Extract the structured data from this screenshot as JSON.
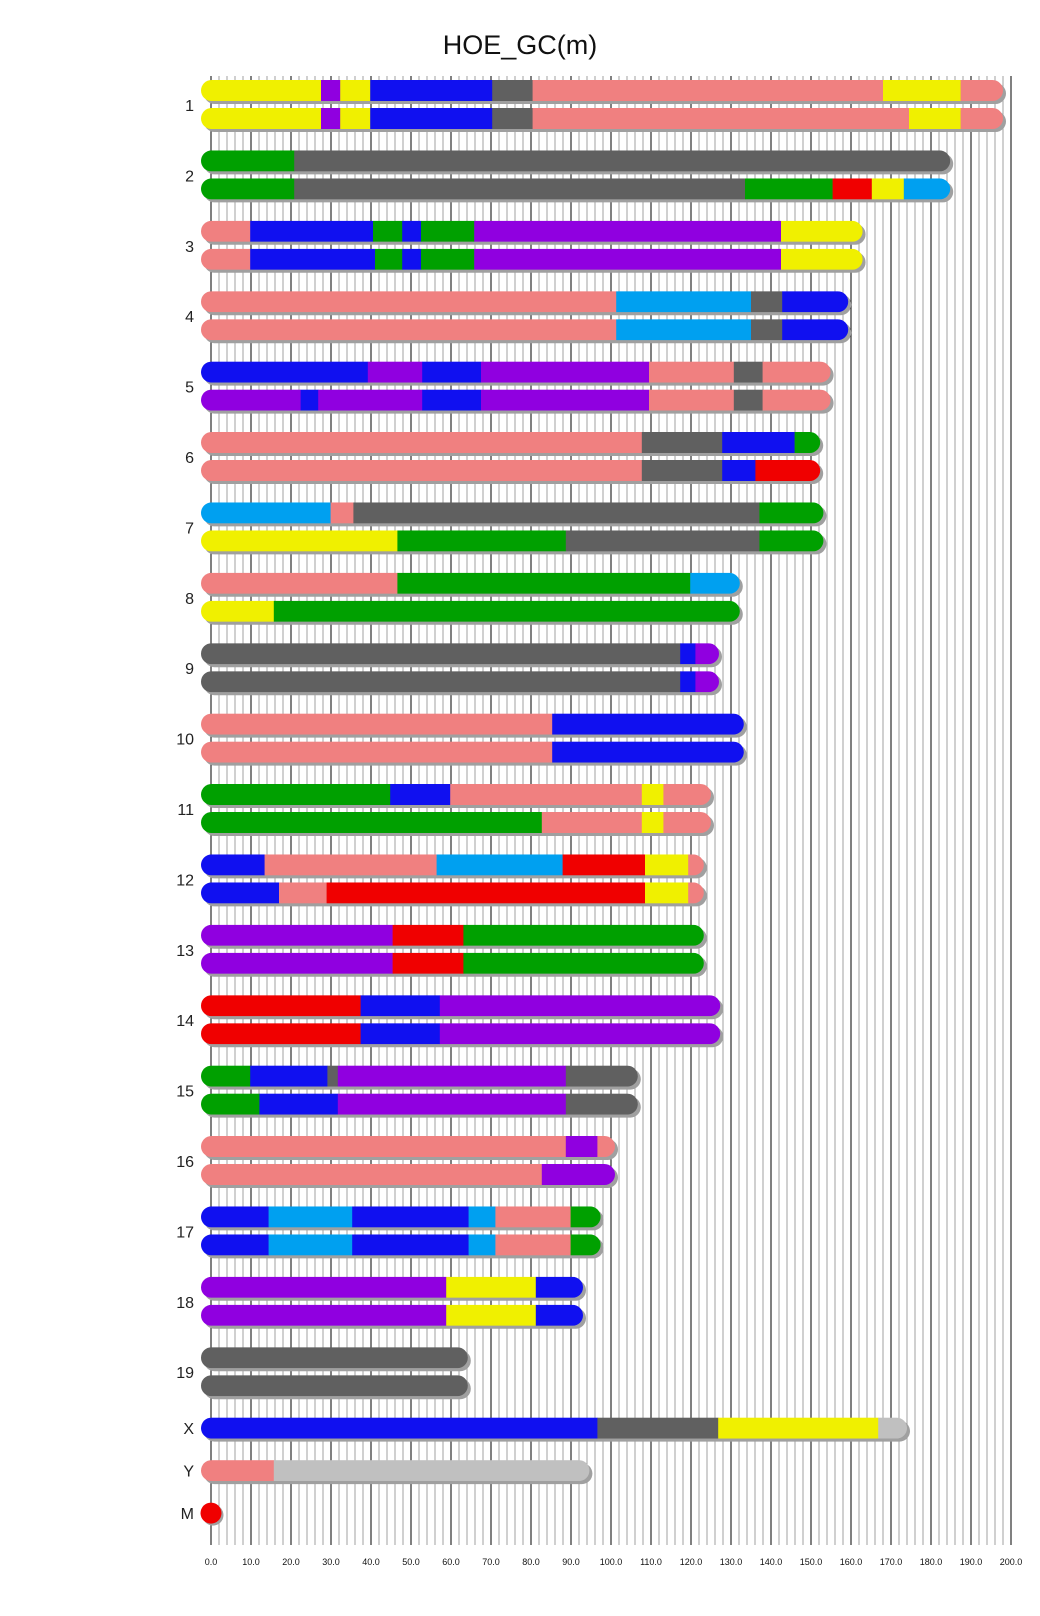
{
  "chart_data": {
    "type": "chromosome-painting",
    "title": "HOE_GC(m)",
    "xlabel": "",
    "xlim": [
      0,
      200
    ],
    "xticks": [
      "0.0",
      "10.0",
      "20.0",
      "30.0",
      "40.0",
      "50.0",
      "60.0",
      "70.0",
      "80.0",
      "90.0",
      "100.0",
      "110.0",
      "120.0",
      "130.0",
      "140.0",
      "150.0",
      "160.0",
      "170.0",
      "180.0",
      "190.0",
      "200.0"
    ],
    "grid": true,
    "colors": {
      "yellow": "#f0f000",
      "purple": "#9000e0",
      "blue": "#1010f0",
      "gray": "#606060",
      "pink": "#f08080",
      "green": "#00a000",
      "red": "#f00000",
      "lightblue": "#00a0f0",
      "lightgray": "#c0c0c0"
    },
    "chromosomes": [
      {
        "name": "1",
        "rows": [
          [
            [
              0,
              27.5,
              "yellow"
            ],
            [
              27.5,
              32.3,
              "purple"
            ],
            [
              32.3,
              39.8,
              "yellow"
            ],
            [
              39.8,
              70.3,
              "blue"
            ],
            [
              70.3,
              80.4,
              "gray"
            ],
            [
              80.4,
              168,
              "pink"
            ],
            [
              168,
              187.4,
              "yellow"
            ],
            [
              187.4,
              198,
              "pink"
            ]
          ],
          [
            [
              0,
              27.5,
              "yellow"
            ],
            [
              27.5,
              32.3,
              "purple"
            ],
            [
              32.3,
              39.8,
              "yellow"
            ],
            [
              39.8,
              70.3,
              "blue"
            ],
            [
              70.3,
              80.4,
              "gray"
            ],
            [
              80.4,
              174.5,
              "pink"
            ],
            [
              174.5,
              187.4,
              "yellow"
            ],
            [
              187.4,
              198,
              "pink"
            ]
          ]
        ]
      },
      {
        "name": "2",
        "rows": [
          [
            [
              0,
              20.8,
              "green"
            ],
            [
              20.8,
              184.8,
              "gray"
            ]
          ],
          [
            [
              0,
              20.8,
              "green"
            ],
            [
              20.8,
              133.5,
              "gray"
            ],
            [
              133.5,
              155.4,
              "green"
            ],
            [
              155.4,
              165.2,
              "red"
            ],
            [
              165.2,
              173.2,
              "yellow"
            ],
            [
              173.2,
              184.8,
              "lightblue"
            ]
          ]
        ]
      },
      {
        "name": "3",
        "rows": [
          [
            [
              0,
              9.8,
              "pink"
            ],
            [
              9.8,
              40.5,
              "blue"
            ],
            [
              40.5,
              47.8,
              "green"
            ],
            [
              47.8,
              52.5,
              "blue"
            ],
            [
              52.5,
              65.8,
              "green"
            ],
            [
              65.8,
              142.5,
              "purple"
            ],
            [
              142.5,
              162.9,
              "yellow"
            ]
          ],
          [
            [
              0,
              9.8,
              "pink"
            ],
            [
              9.8,
              41,
              "blue"
            ],
            [
              41,
              47.8,
              "green"
            ],
            [
              47.8,
              52.5,
              "blue"
            ],
            [
              52.5,
              65.8,
              "green"
            ],
            [
              65.8,
              142.5,
              "purple"
            ],
            [
              142.5,
              162.9,
              "yellow"
            ]
          ]
        ]
      },
      {
        "name": "4",
        "rows": [
          [
            [
              0,
              101.3,
              "pink"
            ],
            [
              101.3,
              135,
              "lightblue"
            ],
            [
              135,
              142.8,
              "gray"
            ],
            [
              142.8,
              159.3,
              "blue"
            ]
          ],
          [
            [
              0,
              101.3,
              "pink"
            ],
            [
              101.3,
              135,
              "lightblue"
            ],
            [
              135,
              142.8,
              "gray"
            ],
            [
              142.8,
              159.3,
              "blue"
            ]
          ]
        ]
      },
      {
        "name": "5",
        "rows": [
          [
            [
              0,
              39.2,
              "blue"
            ],
            [
              39.2,
              52.8,
              "purple"
            ],
            [
              52.8,
              67.5,
              "blue"
            ],
            [
              67.5,
              109.5,
              "purple"
            ],
            [
              109.5,
              130.7,
              "pink"
            ],
            [
              130.7,
              137.9,
              "gray"
            ],
            [
              137.9,
              154.9,
              "pink"
            ]
          ],
          [
            [
              0,
              22.4,
              "purple"
            ],
            [
              22.4,
              26.8,
              "blue"
            ],
            [
              26.8,
              52.8,
              "purple"
            ],
            [
              52.8,
              67.5,
              "blue"
            ],
            [
              67.5,
              109.5,
              "purple"
            ],
            [
              109.5,
              130.7,
              "pink"
            ],
            [
              130.7,
              137.9,
              "gray"
            ],
            [
              137.9,
              154.9,
              "pink"
            ]
          ]
        ]
      },
      {
        "name": "6",
        "rows": [
          [
            [
              0,
              107.7,
              "pink"
            ],
            [
              107.7,
              127.8,
              "gray"
            ],
            [
              127.8,
              145.9,
              "blue"
            ],
            [
              145.9,
              152.3,
              "green"
            ]
          ],
          [
            [
              0,
              107.7,
              "pink"
            ],
            [
              107.7,
              127.8,
              "gray"
            ],
            [
              127.8,
              136.1,
              "blue"
            ],
            [
              136.1,
              152.3,
              "red"
            ]
          ]
        ]
      },
      {
        "name": "7",
        "rows": [
          [
            [
              0,
              29.9,
              "lightblue"
            ],
            [
              29.9,
              35.6,
              "pink"
            ],
            [
              35.6,
              137.1,
              "gray"
            ],
            [
              137.1,
              153.1,
              "green"
            ]
          ],
          [
            [
              0,
              46.6,
              "yellow"
            ],
            [
              46.6,
              88.7,
              "green"
            ],
            [
              88.7,
              137.1,
              "gray"
            ],
            [
              137.1,
              153.1,
              "green"
            ]
          ]
        ]
      },
      {
        "name": "8",
        "rows": [
          [
            [
              0,
              46.6,
              "pink"
            ],
            [
              46.6,
              119.8,
              "green"
            ],
            [
              119.8,
              132.2,
              "lightblue"
            ]
          ],
          [
            [
              0,
              15.7,
              "yellow"
            ],
            [
              15.7,
              132.2,
              "green"
            ]
          ]
        ]
      },
      {
        "name": "9",
        "rows": [
          [
            [
              0,
              117.3,
              "gray"
            ],
            [
              117.3,
              121.1,
              "blue"
            ],
            [
              121.1,
              127,
              "purple"
            ]
          ],
          [
            [
              0,
              117.3,
              "gray"
            ],
            [
              117.3,
              121.1,
              "blue"
            ],
            [
              121.1,
              127,
              "purple"
            ]
          ]
        ]
      },
      {
        "name": "10",
        "rows": [
          [
            [
              0,
              85.3,
              "pink"
            ],
            [
              85.3,
              133.2,
              "blue"
            ]
          ],
          [
            [
              0,
              85.3,
              "pink"
            ],
            [
              85.3,
              133.2,
              "blue"
            ]
          ]
        ]
      },
      {
        "name": "11",
        "rows": [
          [
            [
              0,
              44.8,
              "green"
            ],
            [
              44.8,
              59.8,
              "blue"
            ],
            [
              59.8,
              107.7,
              "pink"
            ],
            [
              107.7,
              113.1,
              "yellow"
            ],
            [
              113.1,
              125,
              "pink"
            ]
          ],
          [
            [
              0,
              82.7,
              "green"
            ],
            [
              82.7,
              107.7,
              "pink"
            ],
            [
              107.7,
              113.1,
              "yellow"
            ],
            [
              113.1,
              125,
              "pink"
            ]
          ]
        ]
      },
      {
        "name": "12",
        "rows": [
          [
            [
              0,
              13.4,
              "blue"
            ],
            [
              13.4,
              56.4,
              "pink"
            ],
            [
              56.4,
              87.9,
              "lightblue"
            ],
            [
              87.9,
              108.5,
              "red"
            ],
            [
              108.5,
              119.3,
              "yellow"
            ],
            [
              119.3,
              123.2,
              "pink"
            ]
          ],
          [
            [
              0,
              17,
              "blue"
            ],
            [
              17,
              28.9,
              "pink"
            ],
            [
              28.9,
              108.5,
              "red"
            ],
            [
              108.5,
              119.3,
              "yellow"
            ],
            [
              119.3,
              123.2,
              "pink"
            ]
          ]
        ]
      },
      {
        "name": "13",
        "rows": [
          [
            [
              0,
              45.4,
              "purple"
            ],
            [
              45.4,
              63.1,
              "red"
            ],
            [
              63.1,
              123.2,
              "green"
            ]
          ],
          [
            [
              0,
              45.4,
              "purple"
            ],
            [
              45.4,
              63.1,
              "red"
            ],
            [
              63.1,
              123.2,
              "green"
            ]
          ]
        ]
      },
      {
        "name": "14",
        "rows": [
          [
            [
              0,
              37.4,
              "red"
            ],
            [
              37.4,
              57.2,
              "blue"
            ],
            [
              57.2,
              127.3,
              "purple"
            ]
          ],
          [
            [
              0,
              37.4,
              "red"
            ],
            [
              37.4,
              57.2,
              "blue"
            ],
            [
              57.2,
              127.3,
              "purple"
            ]
          ]
        ]
      },
      {
        "name": "15",
        "rows": [
          [
            [
              0,
              9.8,
              "green"
            ],
            [
              9.8,
              29.1,
              "blue"
            ],
            [
              29.1,
              31.7,
              "gray"
            ],
            [
              31.7,
              88.7,
              "purple"
            ],
            [
              88.7,
              106.7,
              "gray"
            ]
          ],
          [
            [
              0,
              12.1,
              "green"
            ],
            [
              12.1,
              31.7,
              "blue"
            ],
            [
              31.7,
              88.7,
              "purple"
            ],
            [
              88.7,
              106.7,
              "gray"
            ]
          ]
        ]
      },
      {
        "name": "16",
        "rows": [
          [
            [
              0,
              88.7,
              "pink"
            ],
            [
              88.7,
              96.6,
              "purple"
            ],
            [
              96.6,
              101,
              "pink"
            ]
          ],
          [
            [
              0,
              82.7,
              "pink"
            ],
            [
              82.7,
              101,
              "purple"
            ]
          ]
        ]
      },
      {
        "name": "17",
        "rows": [
          [
            [
              0,
              14.4,
              "blue"
            ],
            [
              14.4,
              35.3,
              "lightblue"
            ],
            [
              35.3,
              64.4,
              "blue"
            ],
            [
              64.4,
              71.1,
              "lightblue"
            ],
            [
              71.1,
              89.9,
              "pink"
            ],
            [
              89.9,
              97.4,
              "green"
            ]
          ],
          [
            [
              0,
              14.4,
              "blue"
            ],
            [
              14.4,
              35.3,
              "lightblue"
            ],
            [
              35.3,
              64.4,
              "blue"
            ],
            [
              64.4,
              71.1,
              "lightblue"
            ],
            [
              71.1,
              89.9,
              "pink"
            ],
            [
              89.9,
              97.4,
              "green"
            ]
          ]
        ]
      },
      {
        "name": "18",
        "rows": [
          [
            [
              0,
              58.8,
              "purple"
            ],
            [
              58.8,
              81.2,
              "yellow"
            ],
            [
              81.2,
              93,
              "blue"
            ]
          ],
          [
            [
              0,
              58.8,
              "purple"
            ],
            [
              58.8,
              81.2,
              "yellow"
            ],
            [
              81.2,
              93,
              "blue"
            ]
          ]
        ]
      },
      {
        "name": "19",
        "rows": [
          [
            [
              0,
              64.2,
              "gray"
            ]
          ],
          [
            [
              0,
              64.2,
              "gray"
            ]
          ]
        ]
      },
      {
        "name": "X",
        "rows": [
          [
            [
              0,
              96.6,
              "blue"
            ],
            [
              96.6,
              126.8,
              "gray"
            ],
            [
              126.8,
              166.8,
              "yellow"
            ],
            [
              166.8,
              174,
              "lightgray"
            ]
          ]
        ]
      },
      {
        "name": "Y",
        "rows": [
          [
            [
              0,
              15.7,
              "pink"
            ],
            [
              15.7,
              94.6,
              "lightgray"
            ]
          ]
        ]
      },
      {
        "name": "M",
        "rows": [
          [
            [
              0,
              0.02,
              "red"
            ]
          ]
        ]
      }
    ]
  }
}
